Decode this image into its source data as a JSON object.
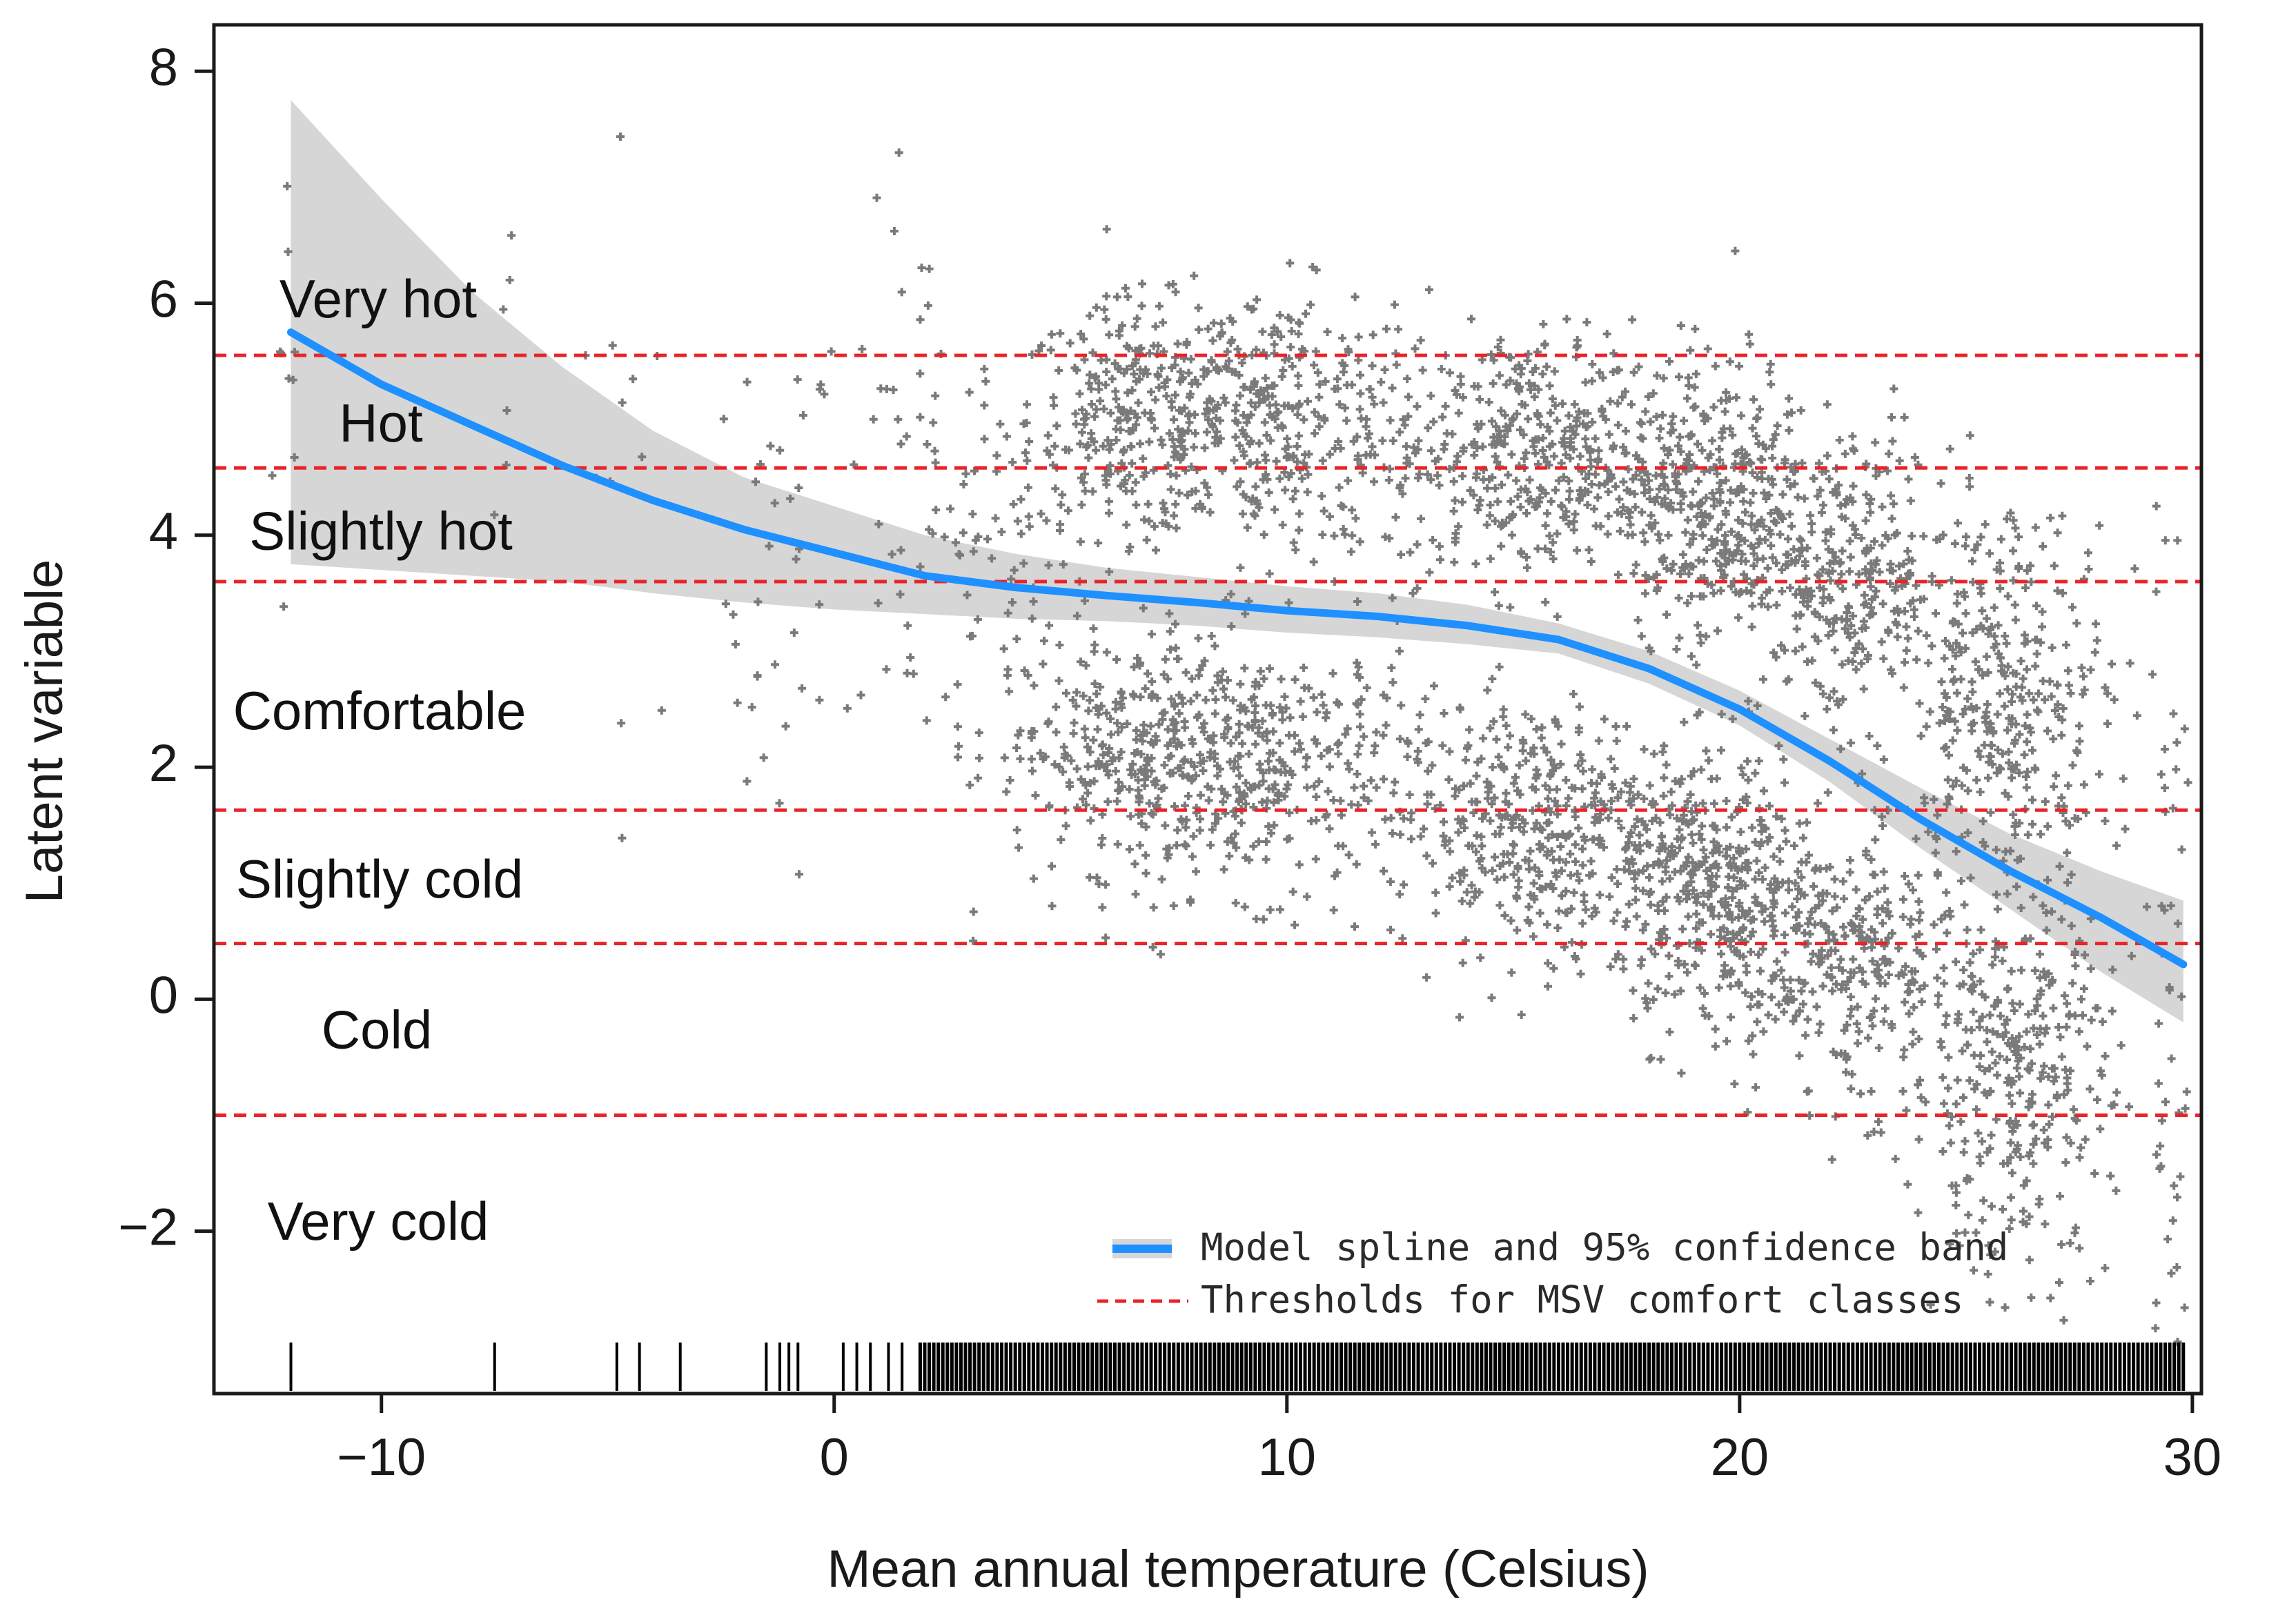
{
  "chart_data": {
    "type": "scatter",
    "xlabel": "Mean annual temperature (Celsius)",
    "ylabel": "Latent variable",
    "xlim": [
      -13.7,
      30.2
    ],
    "ylim": [
      -3.4,
      8.4
    ],
    "xticks": [
      -10,
      0,
      10,
      20,
      30
    ],
    "yticks": [
      -2,
      0,
      2,
      4,
      6,
      8
    ],
    "x_tick_labels": [
      "−10",
      "0",
      "10",
      "20",
      "30"
    ],
    "y_tick_labels": [
      "−2",
      "0",
      "2",
      "4",
      "6",
      "8"
    ],
    "colors": {
      "spline": "#1e90ff",
      "band": "#d6d6d6",
      "points": "#7a7a7a",
      "threshold": "#e8242a",
      "rug": "#000000",
      "axis": "#1a1a1a"
    },
    "spline": {
      "name": "Model spline and 95% confidence band",
      "x": [
        -12,
        -10,
        -8,
        -6,
        -4,
        -2,
        0,
        2,
        4,
        6,
        8,
        10,
        12,
        14,
        16,
        18,
        20,
        22,
        24,
        26,
        28,
        29.8
      ],
      "y": [
        5.75,
        5.3,
        4.95,
        4.6,
        4.3,
        4.05,
        3.85,
        3.65,
        3.55,
        3.48,
        3.42,
        3.35,
        3.3,
        3.22,
        3.1,
        2.85,
        2.5,
        2.05,
        1.55,
        1.1,
        0.7,
        0.3
      ],
      "lower": [
        3.75,
        3.7,
        3.65,
        3.6,
        3.5,
        3.42,
        3.36,
        3.32,
        3.28,
        3.26,
        3.22,
        3.16,
        3.12,
        3.06,
        2.98,
        2.72,
        2.36,
        1.87,
        1.3,
        0.77,
        0.23,
        -0.2
      ],
      "upper": [
        7.75,
        6.9,
        6.1,
        5.45,
        4.9,
        4.5,
        4.25,
        4.0,
        3.84,
        3.72,
        3.64,
        3.56,
        3.5,
        3.4,
        3.24,
        3.0,
        2.66,
        2.24,
        1.82,
        1.42,
        1.1,
        0.85
      ]
    },
    "thresholds": {
      "name": "Thresholds for MSV comfort classes",
      "values": [
        5.55,
        4.58,
        3.6,
        1.63,
        0.48,
        -1.0
      ]
    },
    "comfort_classes": [
      {
        "label": "Very hot",
        "y": 6.0
      },
      {
        "label": "Hot",
        "y": 4.93
      },
      {
        "label": "Slightly hot",
        "y": 4.0
      },
      {
        "label": "Comfortable",
        "y": 2.45
      },
      {
        "label": "Slightly cold",
        "y": 1.0
      },
      {
        "label": "Cold",
        "y": -0.3
      },
      {
        "label": "Very cold",
        "y": -1.95
      }
    ],
    "observation_clusters": [
      {
        "cx": -12.0,
        "cy": 5.2,
        "sx": 0.2,
        "sy": 1.3,
        "n": 10
      },
      {
        "cx": -7.5,
        "cy": 5.3,
        "sx": 0.3,
        "sy": 1.0,
        "n": 6
      },
      {
        "cx": -4.5,
        "cy": 4.8,
        "sx": 0.6,
        "sy": 1.3,
        "n": 12
      },
      {
        "cx": -1.2,
        "cy": 3.5,
        "sx": 0.6,
        "sy": 1.2,
        "n": 35
      },
      {
        "cx": 2.0,
        "cy": 4.3,
        "sx": 0.9,
        "sy": 1.2,
        "n": 60
      },
      {
        "cx": 4.0,
        "cy": 3.5,
        "sx": 0.9,
        "sy": 1.3,
        "n": 70
      },
      {
        "cx": 6.5,
        "cy": 5.0,
        "sx": 1.1,
        "sy": 0.5,
        "n": 230
      },
      {
        "cx": 9.5,
        "cy": 5.0,
        "sx": 1.8,
        "sy": 0.55,
        "n": 380
      },
      {
        "cx": 6.5,
        "cy": 2.1,
        "sx": 1.1,
        "sy": 0.5,
        "n": 230
      },
      {
        "cx": 9.5,
        "cy": 2.0,
        "sx": 1.8,
        "sy": 0.55,
        "n": 380
      },
      {
        "cx": 15.5,
        "cy": 4.7,
        "sx": 1.6,
        "sy": 0.55,
        "n": 420
      },
      {
        "cx": 15.5,
        "cy": 1.5,
        "sx": 1.6,
        "sy": 0.55,
        "n": 420
      },
      {
        "cx": 19.5,
        "cy": 4.3,
        "sx": 1.1,
        "sy": 0.6,
        "n": 380
      },
      {
        "cx": 19.5,
        "cy": 0.9,
        "sx": 1.1,
        "sy": 0.6,
        "n": 380
      },
      {
        "cx": 22.5,
        "cy": 3.6,
        "sx": 1.1,
        "sy": 0.6,
        "n": 300
      },
      {
        "cx": 22.5,
        "cy": 0.3,
        "sx": 1.1,
        "sy": 0.6,
        "n": 300
      },
      {
        "cx": 26.0,
        "cy": 2.6,
        "sx": 1.1,
        "sy": 0.8,
        "n": 330
      },
      {
        "cx": 26.0,
        "cy": -0.7,
        "sx": 1.1,
        "sy": 0.8,
        "n": 330
      },
      {
        "cx": 29.5,
        "cy": 1.3,
        "sx": 0.3,
        "sy": 1.5,
        "n": 30
      },
      {
        "cx": 29.5,
        "cy": -1.8,
        "sx": 0.3,
        "sy": 1.0,
        "n": 25
      }
    ],
    "rug_sparse_x": [
      -12,
      -7.5,
      -4.8,
      -4.3,
      -3.4,
      -1.5,
      -1.2,
      -1.0,
      -0.8,
      0.2,
      0.5,
      0.8,
      1.2,
      1.5
    ],
    "rug_dense_range": [
      1.9,
      29.9
    ],
    "legend": {
      "spline_label": "Model spline and 95% confidence band",
      "threshold_label": "Thresholds for MSV comfort classes",
      "position": "bottom-right"
    }
  }
}
